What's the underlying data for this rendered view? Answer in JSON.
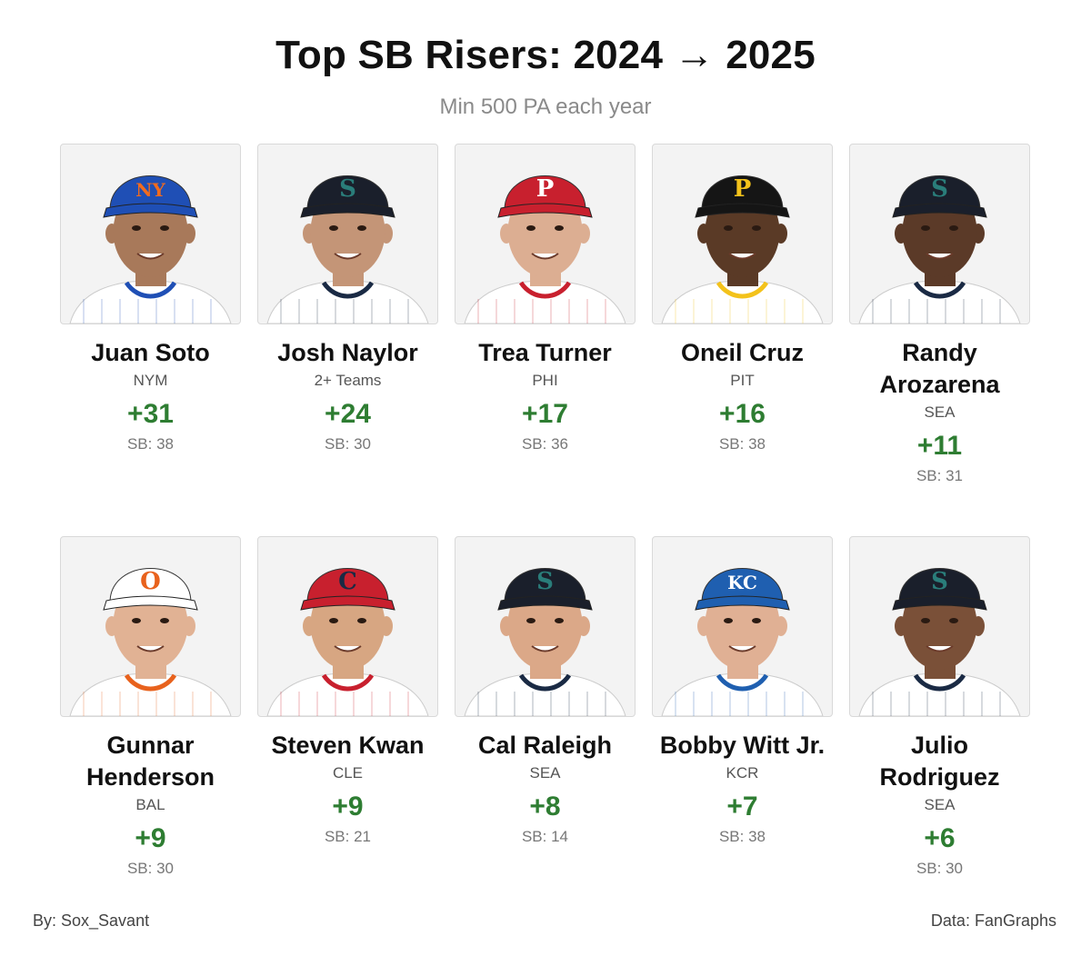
{
  "title": "Top SB Risers: 2024 → 2025",
  "subtitle": "Min 500 PA each year",
  "players": [
    {
      "name": "Juan Soto",
      "team": "NYM",
      "delta": "+31",
      "sb": "SB: 38",
      "cap_color": "#1f4fb5",
      "logo": "NY",
      "logo_color": "#f26b1d",
      "skin": "#a8795a",
      "jersey": "#ffffff",
      "stripe": "#1f4fb5"
    },
    {
      "name": "Josh Naylor",
      "team": "2+ Teams",
      "delta": "+24",
      "sb": "SB: 30",
      "cap_color": "#1a1f2b",
      "logo": "S",
      "logo_color": "#2a7d7a",
      "skin": "#c49577",
      "jersey": "#ffffff",
      "stripe": "#1a2a44"
    },
    {
      "name": "Trea Turner",
      "team": "PHI",
      "delta": "+17",
      "sb": "SB: 36",
      "cap_color": "#c8202e",
      "logo": "P",
      "logo_color": "#ffffff",
      "skin": "#dcae92",
      "jersey": "#ffffff",
      "stripe": "#c8202e"
    },
    {
      "name": "Oneil Cruz",
      "team": "PIT",
      "delta": "+16",
      "sb": "SB: 38",
      "cap_color": "#151515",
      "logo": "P",
      "logo_color": "#f3c21b",
      "skin": "#5a3a26",
      "jersey": "#ffffff",
      "stripe": "#f3c21b"
    },
    {
      "name": "Randy Arozarena",
      "team": "SEA",
      "delta": "+11",
      "sb": "SB: 31",
      "cap_color": "#1a1f2b",
      "logo": "S",
      "logo_color": "#2a7d7a",
      "skin": "#5b3a28",
      "jersey": "#ffffff",
      "stripe": "#1a2a44"
    },
    {
      "name": "Gunnar Henderson",
      "team": "BAL",
      "delta": "+9",
      "sb": "SB: 30",
      "cap_color": "#ffffff",
      "logo": "O",
      "logo_color": "#e8621d",
      "skin": "#e1b294",
      "jersey": "#ffffff",
      "stripe": "#e8621d"
    },
    {
      "name": "Steven Kwan",
      "team": "CLE",
      "delta": "+9",
      "sb": "SB: 21",
      "cap_color": "#c8202e",
      "logo": "C",
      "logo_color": "#1a2a44",
      "skin": "#d7a682",
      "jersey": "#ffffff",
      "stripe": "#c8202e"
    },
    {
      "name": "Cal Raleigh",
      "team": "SEA",
      "delta": "+8",
      "sb": "SB: 14",
      "cap_color": "#1a1f2b",
      "logo": "S",
      "logo_color": "#2a7d7a",
      "skin": "#dba888",
      "jersey": "#ffffff",
      "stripe": "#1a2a44"
    },
    {
      "name": "Bobby Witt Jr.",
      "team": "KCR",
      "delta": "+7",
      "sb": "SB: 38",
      "cap_color": "#1f5fb0",
      "logo": "KC",
      "logo_color": "#ffffff",
      "skin": "#e0b094",
      "jersey": "#ffffff",
      "stripe": "#1f5fb0"
    },
    {
      "name": "Julio Rodriguez",
      "team": "SEA",
      "delta": "+6",
      "sb": "SB: 30",
      "cap_color": "#1a1f2b",
      "logo": "S",
      "logo_color": "#2a7d7a",
      "skin": "#7a5038",
      "jersey": "#ffffff",
      "stripe": "#1a2a44"
    }
  ],
  "footer": {
    "left": "By: Sox_Savant",
    "right": "Data: FanGraphs"
  }
}
